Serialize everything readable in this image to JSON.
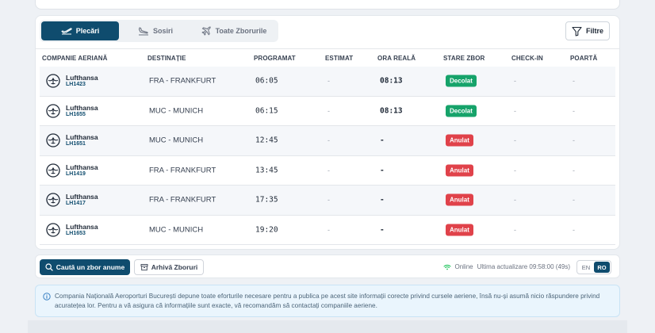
{
  "tabs": [
    {
      "label": "Plecări",
      "icon": "plane-departure-icon",
      "active": true
    },
    {
      "label": "Sosiri",
      "icon": "plane-arrival-icon",
      "active": false
    },
    {
      "label": "Toate Zborurile",
      "icon": "plane-icon",
      "active": false
    }
  ],
  "filter_label": "Filtre",
  "columns": {
    "airline": "COMPANIE AERIANĂ",
    "destination": "DESTINAȚIE",
    "scheduled": "PROGRAMAT",
    "estimated": "ESTIMAT",
    "actual": "ORA REALĂ",
    "status": "STARE ZBOR",
    "checkin": "CHECK-IN",
    "gate": "POARTĂ"
  },
  "flights": [
    {
      "airline": "Lufthansa",
      "flight": "LH1423",
      "destination": "FRA - FRANKFURT",
      "scheduled": "06:05",
      "estimated": "-",
      "actual": "08:13",
      "status": "Decolat",
      "checkin": "-",
      "gate": "-"
    },
    {
      "airline": "Lufthansa",
      "flight": "LH1655",
      "destination": "MUC - MUNICH",
      "scheduled": "06:15",
      "estimated": "-",
      "actual": "08:13",
      "status": "Decolat",
      "checkin": "-",
      "gate": "-"
    },
    {
      "airline": "Lufthansa",
      "flight": "LH1651",
      "destination": "MUC - MUNICH",
      "scheduled": "12:45",
      "estimated": "-",
      "actual": "-",
      "status": "Anulat",
      "checkin": "-",
      "gate": "-"
    },
    {
      "airline": "Lufthansa",
      "flight": "LH1419",
      "destination": "FRA - FRANKFURT",
      "scheduled": "13:45",
      "estimated": "-",
      "actual": "-",
      "status": "Anulat",
      "checkin": "-",
      "gate": "-"
    },
    {
      "airline": "Lufthansa",
      "flight": "LH1417",
      "destination": "FRA - FRANKFURT",
      "scheduled": "17:35",
      "estimated": "-",
      "actual": "-",
      "status": "Anulat",
      "checkin": "-",
      "gate": "-"
    },
    {
      "airline": "Lufthansa",
      "flight": "LH1653",
      "destination": "MUC - MUNICH",
      "scheduled": "19:20",
      "estimated": "-",
      "actual": "-",
      "status": "Anulat",
      "checkin": "-",
      "gate": "-"
    }
  ],
  "status_colors": {
    "Decolat": "#16a36a",
    "Anulat": "#e0424a"
  },
  "footer": {
    "search_label": "Caută un zbor anume",
    "archive_label": "Arhivă Zboruri",
    "online_label": "Online",
    "updated_text": "Ultima actualizare 09:58:00 (49s)",
    "lang_en": "EN",
    "lang_ro": "RO"
  },
  "info_text": "Compania Națională Aeroporturi București depune toate eforturile necesare pentru a publica pe acest site informații corecte privind cursele aeriene, însă nu-și asumă nicio răspundere privind acuratețea lor. Pentru a vă asigura că informațiile sunt exacte, vă recomandăm să contactați companiile aeriene.",
  "colors": {
    "primary": "#0f4c6e",
    "online": "#22c55e"
  }
}
